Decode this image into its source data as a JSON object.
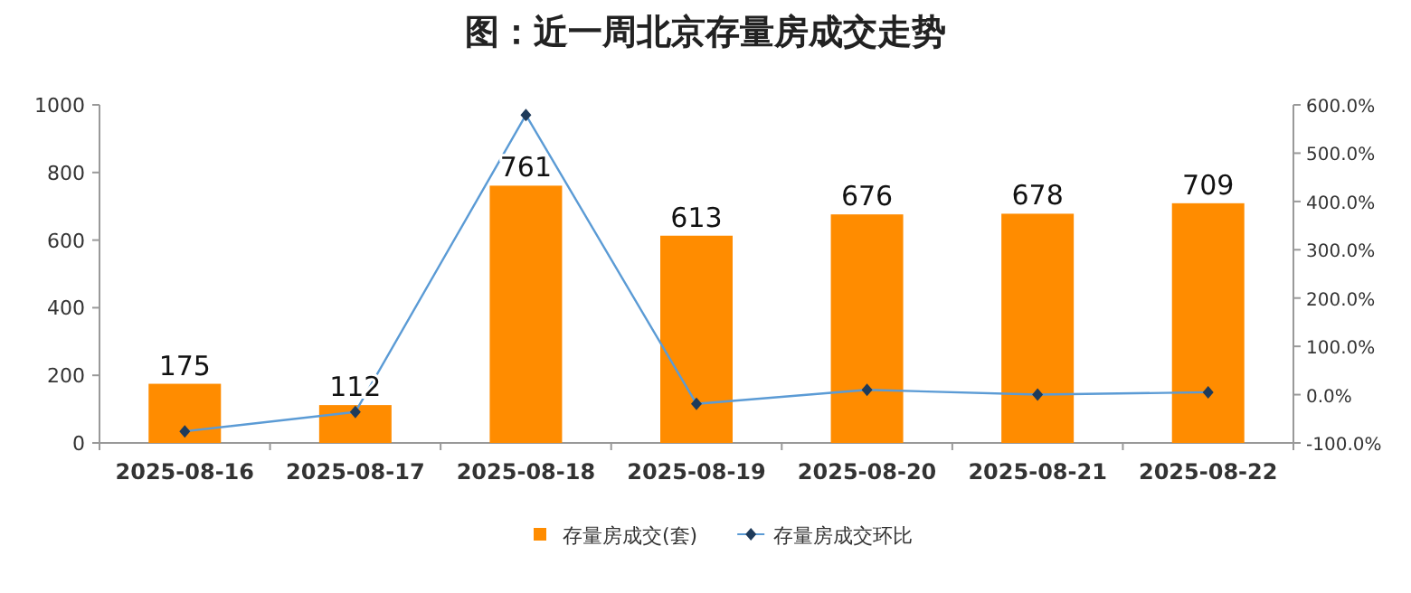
{
  "chart_data": {
    "type": "bar",
    "title": "图：近一周北京存量房成交走势",
    "categories": [
      "2025-08-16",
      "2025-08-17",
      "2025-08-18",
      "2025-08-19",
      "2025-08-20",
      "2025-08-21",
      "2025-08-22"
    ],
    "series": [
      {
        "name": "存量房成交(套)",
        "color": "#ff8c00",
        "values": [
          175,
          112,
          761,
          613,
          676,
          678,
          709
        ],
        "value_labels": [
          "175",
          "112",
          "761",
          "613",
          "676",
          "678",
          "709"
        ]
      },
      {
        "name": "存量房成交环比",
        "type": "line",
        "axis": "y2",
        "color": "#5b9bd5",
        "marker": "diamond",
        "values": [
          -76,
          -36,
          579,
          -19,
          10,
          0,
          5
        ]
      }
    ],
    "ylim": [
      0,
      1000
    ],
    "yticks": [
      0,
      200,
      400,
      600,
      800,
      1000
    ],
    "y2lim": [
      -100,
      600
    ],
    "y2ticks": [
      {
        "value": -100,
        "label": "-100.0%"
      },
      {
        "value": 0,
        "label": "0.0%"
      },
      {
        "value": 100,
        "label": "100.0%"
      },
      {
        "value": 200,
        "label": "200.0%"
      },
      {
        "value": 300,
        "label": "300.0%"
      },
      {
        "value": 400,
        "label": "400.0%"
      },
      {
        "value": 500,
        "label": "500.0%"
      },
      {
        "value": 600,
        "label": "600.0%"
      }
    ],
    "legend": "bottom"
  }
}
